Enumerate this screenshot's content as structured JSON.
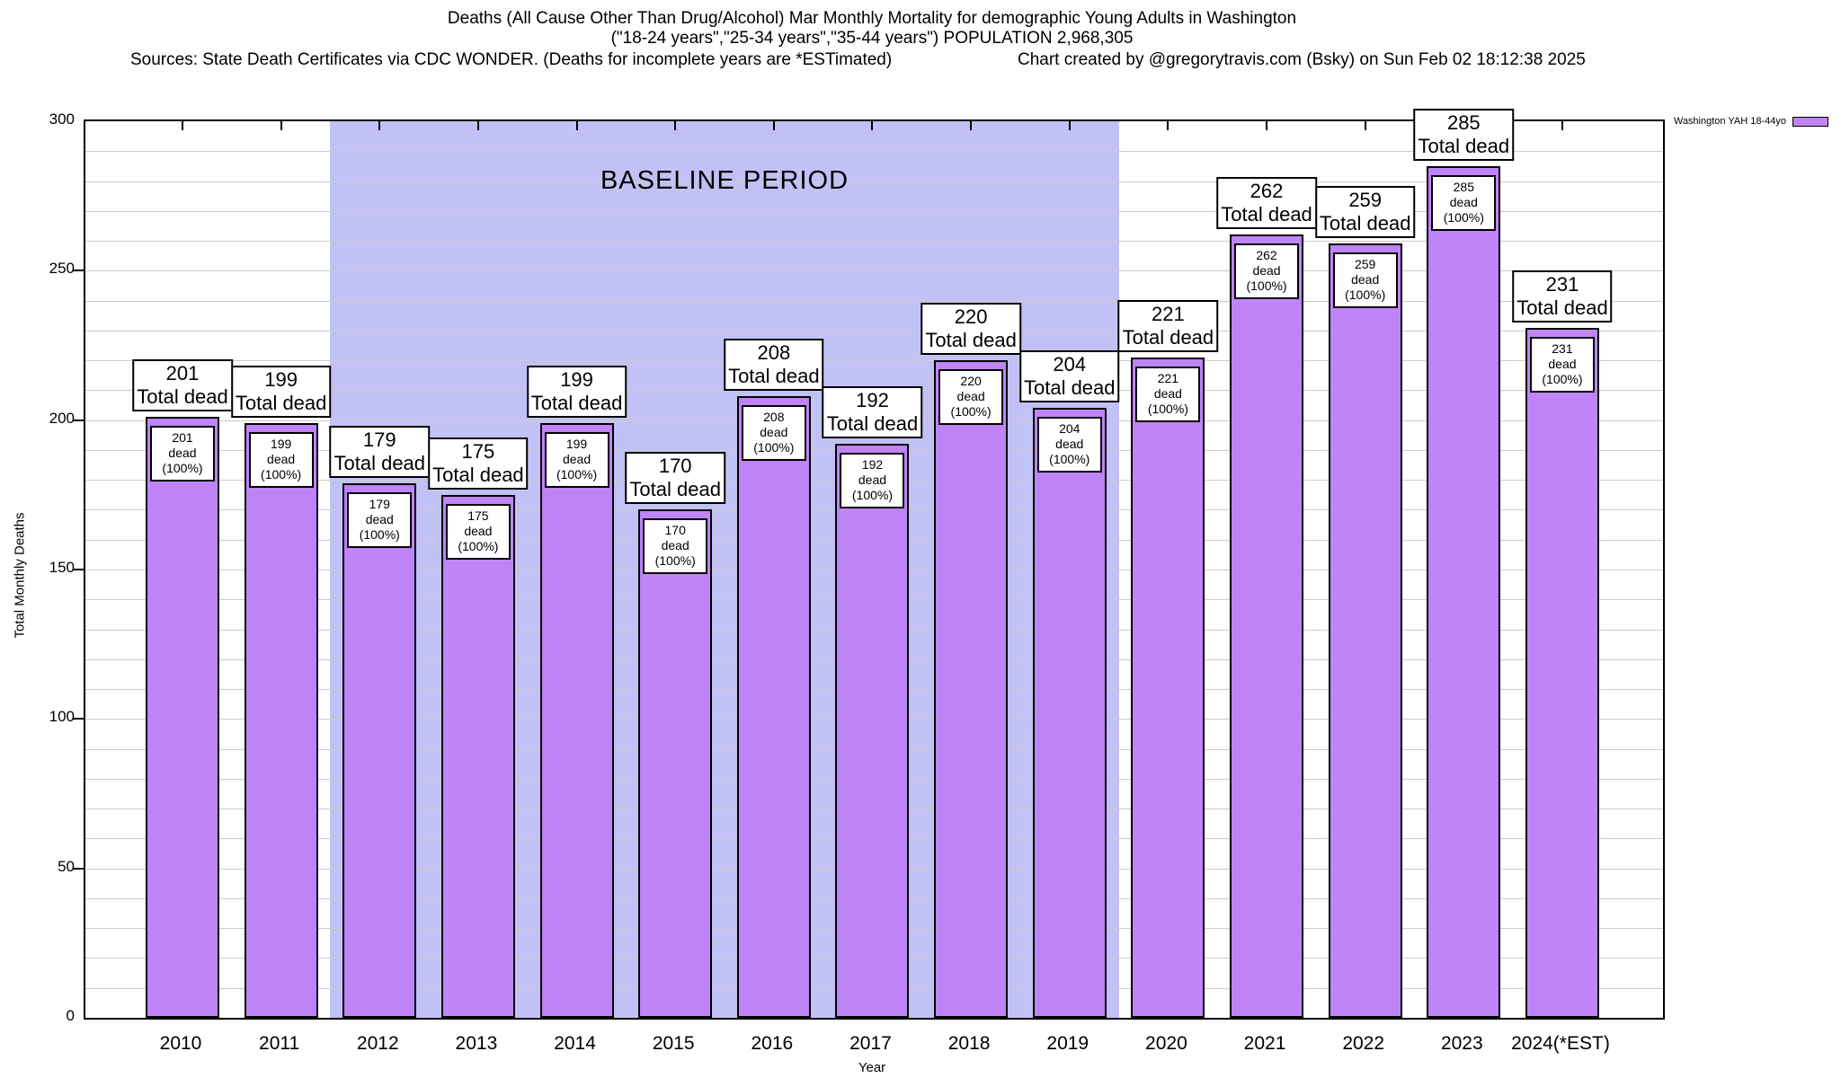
{
  "header": {
    "title_line1": "Deaths (All Cause Other Than Drug/Alcohol) Mar Monthly Mortality for demographic Young Adults in Washington",
    "title_line2": "(\"18-24 years\",\"25-34 years\",\"35-44 years\") POPULATION 2,968,305",
    "sources": "Sources: State Death Certificates via CDC WONDER. (Deaths for incomplete years are *ESTimated)",
    "credit": "Chart created by @gregorytravis.com (Bsky) on Sun Feb 02 18:12:38 2025"
  },
  "legend": {
    "label": "Washington YAH 18-44yo"
  },
  "chart_data": {
    "type": "bar",
    "title": "Deaths (All Cause Other Than Drug/Alcohol) Mar Monthly Mortality for demographic Young Adults in Washington",
    "categories": [
      "2010",
      "2011",
      "2012",
      "2013",
      "2014",
      "2015",
      "2016",
      "2017",
      "2018",
      "2019",
      "2020",
      "2021",
      "2022",
      "2023",
      "2024(*EST)"
    ],
    "values": [
      201,
      199,
      179,
      175,
      199,
      170,
      208,
      192,
      220,
      204,
      221,
      262,
      259,
      285,
      231
    ],
    "series_name": "Washington YAH 18-44yo",
    "xlabel": "Year",
    "ylabel": "Total Monthly Deaths",
    "ylim": [
      0,
      300
    ],
    "y_major_ticks": [
      0,
      50,
      100,
      150,
      200,
      250,
      300
    ],
    "y_minor_step": 10,
    "grid": true,
    "legend_position": "top-right",
    "baseline": {
      "label": "BASELINE PERIOD",
      "start_category": "2012",
      "end_category": "2019"
    },
    "bar_label_top_suffix": "Total dead",
    "bar_label_inner_suffix": "dead (100%)",
    "colors": {
      "bar_fill": "#bf84f7",
      "bar_border": "#000000",
      "baseline_fill": "#c1c1f6",
      "grid": "#cccccc",
      "text": "#000000"
    }
  }
}
